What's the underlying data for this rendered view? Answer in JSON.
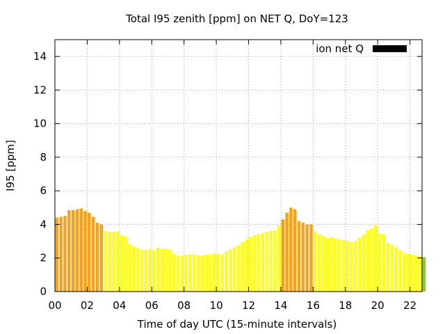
{
  "chart_data": {
    "type": "bar",
    "title": "Total I95 zenith [ppm] on NET Q, DoY=123",
    "xlabel": "Time of day UTC (15-minute intervals)",
    "ylabel": "I95 [ppm]",
    "xlim": [
      0,
      22.75
    ],
    "ylim": [
      0,
      15
    ],
    "grid": true,
    "legend_position": "top-right",
    "legend": [
      {
        "label": "ion net Q",
        "color": "#000000"
      }
    ],
    "x_ticks": [
      "00",
      "02",
      "04",
      "06",
      "08",
      "10",
      "12",
      "14",
      "16",
      "18",
      "20",
      "22"
    ],
    "y_ticks": [
      "0",
      "2",
      "4",
      "6",
      "8",
      "10",
      "12",
      "14"
    ],
    "interval_hours": 0.25,
    "colors": {
      "orange": "#f5a31a",
      "yellow": "#ffff1a",
      "green": "#8cc63f"
    },
    "values": [
      4.4,
      4.45,
      4.5,
      4.85,
      4.85,
      4.9,
      4.95,
      4.8,
      4.7,
      4.45,
      4.1,
      4.0,
      3.6,
      3.55,
      3.55,
      3.6,
      3.35,
      3.3,
      2.85,
      2.7,
      2.6,
      2.5,
      2.5,
      2.55,
      2.45,
      2.6,
      2.55,
      2.55,
      2.5,
      2.25,
      2.1,
      2.15,
      2.2,
      2.2,
      2.2,
      2.15,
      2.15,
      2.2,
      2.2,
      2.25,
      2.25,
      2.2,
      2.4,
      2.5,
      2.65,
      2.75,
      2.95,
      3.1,
      3.25,
      3.35,
      3.4,
      3.5,
      3.55,
      3.6,
      3.65,
      3.95,
      4.3,
      4.7,
      5.0,
      4.9,
      4.2,
      4.1,
      4.0,
      4.0,
      3.55,
      3.4,
      3.3,
      3.2,
      3.25,
      3.15,
      3.1,
      3.05,
      3.0,
      2.95,
      3.0,
      3.2,
      3.4,
      3.65,
      3.75,
      3.95,
      3.45,
      3.4,
      2.9,
      2.8,
      2.65,
      2.45,
      2.3,
      2.25,
      2.2,
      2.15,
      2.1,
      2.05
    ],
    "bar_colors": [
      "orange",
      "orange",
      "orange",
      "orange",
      "orange",
      "orange",
      "orange",
      "orange",
      "orange",
      "orange",
      "orange",
      "orange",
      "yellow",
      "yellow",
      "yellow",
      "yellow",
      "yellow",
      "yellow",
      "yellow",
      "yellow",
      "yellow",
      "yellow",
      "yellow",
      "yellow",
      "yellow",
      "yellow",
      "yellow",
      "yellow",
      "yellow",
      "yellow",
      "yellow",
      "yellow",
      "yellow",
      "yellow",
      "yellow",
      "yellow",
      "yellow",
      "yellow",
      "yellow",
      "yellow",
      "yellow",
      "yellow",
      "yellow",
      "yellow",
      "yellow",
      "yellow",
      "yellow",
      "yellow",
      "yellow",
      "yellow",
      "yellow",
      "yellow",
      "yellow",
      "yellow",
      "yellow",
      "yellow",
      "orange",
      "orange",
      "orange",
      "orange",
      "orange",
      "orange",
      "orange",
      "orange",
      "yellow",
      "yellow",
      "yellow",
      "yellow",
      "yellow",
      "yellow",
      "yellow",
      "yellow",
      "yellow",
      "yellow",
      "yellow",
      "yellow",
      "yellow",
      "yellow",
      "yellow",
      "yellow",
      "yellow",
      "yellow",
      "yellow",
      "yellow",
      "yellow",
      "yellow",
      "yellow",
      "yellow",
      "yellow",
      "yellow",
      "yellow",
      "green"
    ]
  }
}
